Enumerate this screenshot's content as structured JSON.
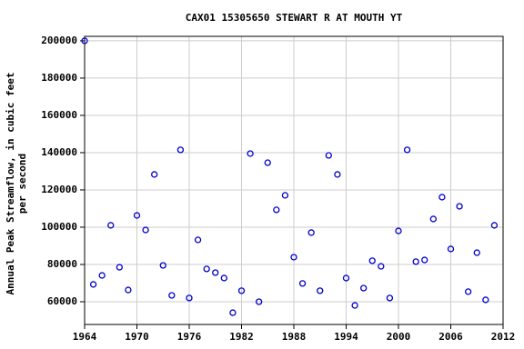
{
  "chart_data": {
    "type": "scatter",
    "title": "CAX01 15305650 STEWART R AT MOUTH YT",
    "y_label": [
      "Annual Peak Streamflow, in cubic feet",
      "per second"
    ],
    "x": [
      1964,
      1965,
      1966,
      1967,
      1968,
      1969,
      1970,
      1971,
      1972,
      1973,
      1974,
      1975,
      1976,
      1977,
      1978,
      1979,
      1980,
      1981,
      1982,
      1983,
      1984,
      1985,
      1986,
      1987,
      1988,
      1989,
      1990,
      1991,
      1992,
      1993,
      1994,
      1995,
      1996,
      1997,
      1998,
      1999,
      2000,
      2001,
      2002,
      2003,
      2004,
      2005,
      2006,
      2007,
      2008,
      2009,
      2010,
      2011
    ],
    "values": [
      200000,
      69300,
      74100,
      101000,
      78500,
      66300,
      106300,
      98500,
      128300,
      79500,
      63400,
      141500,
      62000,
      93200,
      77600,
      75600,
      72700,
      54100,
      65900,
      139500,
      60000,
      134600,
      109300,
      117100,
      83900,
      69800,
      97100,
      65900,
      138500,
      128300,
      72700,
      58000,
      67300,
      82000,
      79000,
      62000,
      98000,
      141500,
      81500,
      82400,
      104400,
      116100,
      88300,
      111200,
      65400,
      86300,
      61000,
      101000
    ],
    "color": "#0000cc",
    "xlim": [
      1964,
      2012
    ],
    "xticks": [
      1964,
      1970,
      1976,
      1982,
      1988,
      1994,
      2000,
      2006,
      2012
    ],
    "ylim": [
      47800,
      202400
    ],
    "yticks": [
      60000,
      80000,
      100000,
      120000,
      140000,
      160000,
      180000,
      200000
    ],
    "grid": true
  }
}
